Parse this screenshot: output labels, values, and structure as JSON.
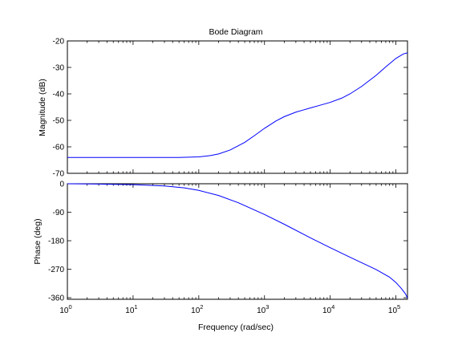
{
  "chart_data": {
    "type": "line",
    "title": "Bode Diagram",
    "xlabel": "Frequency  (rad/sec)",
    "x_scale": "log",
    "xlim": [
      1,
      150000
    ],
    "x_ticks": [
      1,
      10,
      100,
      1000,
      10000,
      100000
    ],
    "x_tick_labels": [
      {
        "base": "10",
        "exp": "0"
      },
      {
        "base": "10",
        "exp": "1"
      },
      {
        "base": "10",
        "exp": "2"
      },
      {
        "base": "10",
        "exp": "3"
      },
      {
        "base": "10",
        "exp": "4"
      },
      {
        "base": "10",
        "exp": "5"
      }
    ],
    "line_color": "#0000ff",
    "grid": false,
    "magnitude": {
      "ylabel": "Magnitude (dB)",
      "ylim": [
        -70,
        -20
      ],
      "y_ticks": [
        -70,
        -60,
        -50,
        -40,
        -30,
        -20
      ],
      "y_tick_labels": [
        "-70",
        "-60",
        "-50",
        "-40",
        "-30",
        "-20"
      ],
      "x": [
        1,
        10,
        50,
        100,
        150,
        200,
        300,
        500,
        700,
        1000,
        1500,
        2000,
        3000,
        4000,
        5000,
        7000,
        10000,
        15000,
        20000,
        30000,
        50000,
        70000,
        100000,
        130000,
        150000
      ],
      "y": [
        -64,
        -64,
        -64,
        -63.8,
        -63.3,
        -62.7,
        -61.2,
        -58.3,
        -55.8,
        -53,
        -50.2,
        -48.6,
        -46.9,
        -46,
        -45.3,
        -44.3,
        -43.2,
        -41.6,
        -40,
        -37.2,
        -33,
        -29.8,
        -26.6,
        -24.9,
        -24.5
      ]
    },
    "phase": {
      "ylabel": "Phase (deg)",
      "ylim": [
        -365,
        0
      ],
      "y_ticks": [
        0,
        -90,
        -180,
        -270,
        -360
      ],
      "y_tick_labels": [
        "0",
        "-90",
        "-180",
        "-270",
        "-360"
      ],
      "x": [
        1,
        3,
        10,
        30,
        60,
        100,
        200,
        400,
        1000,
        2000,
        5000,
        10000,
        20000,
        50000,
        80000,
        100000,
        120000,
        140000,
        150000
      ],
      "y": [
        0,
        -1,
        -3,
        -7,
        -13,
        -21,
        -37,
        -60,
        -97,
        -128,
        -171,
        -202,
        -232,
        -271,
        -295,
        -312,
        -330,
        -348,
        -361
      ]
    }
  }
}
